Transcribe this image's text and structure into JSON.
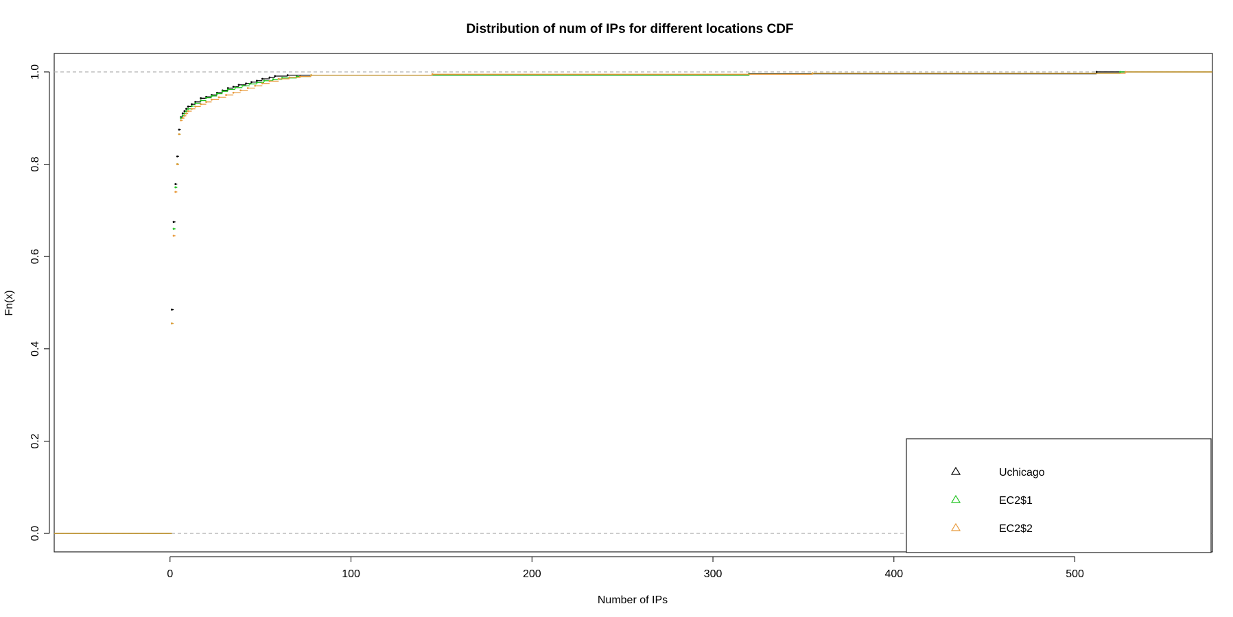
{
  "chart_data": {
    "type": "line",
    "title": "Distribution of num of IPs for different locations CDF",
    "xlabel": "Number of IPs",
    "ylabel": "Fn(x)",
    "xlim": [
      -64,
      576
    ],
    "ylim": [
      -0.04,
      1.04
    ],
    "x_ticks": [
      "0",
      "100",
      "200",
      "300",
      "400",
      "500"
    ],
    "y_ticks": [
      "0.0",
      "0.2",
      "0.4",
      "0.6",
      "0.8",
      "1.0"
    ],
    "reference_lines_y": [
      0,
      1
    ],
    "legend_position": "bottom-right",
    "series": [
      {
        "name": "Uchicago",
        "color": "#000000",
        "points": [
          [
            1,
            0.485
          ],
          [
            2,
            0.675
          ],
          [
            3,
            0.757
          ],
          [
            4,
            0.817
          ],
          [
            5,
            0.875
          ],
          [
            6,
            0.902
          ],
          [
            7,
            0.91
          ],
          [
            8,
            0.915
          ],
          [
            9,
            0.92
          ],
          [
            10,
            0.925
          ],
          [
            12,
            0.93
          ],
          [
            14,
            0.935
          ],
          [
            17,
            0.943
          ],
          [
            20,
            0.946
          ],
          [
            23,
            0.95
          ],
          [
            26,
            0.955
          ],
          [
            29,
            0.96
          ],
          [
            32,
            0.965
          ],
          [
            35,
            0.968
          ],
          [
            38,
            0.972
          ],
          [
            42,
            0.975
          ],
          [
            45,
            0.978
          ],
          [
            48,
            0.981
          ],
          [
            51,
            0.985
          ],
          [
            55,
            0.988
          ],
          [
            58,
            0.991
          ],
          [
            65,
            0.993
          ],
          [
            320,
            0.996
          ],
          [
            512,
            1.0
          ]
        ]
      },
      {
        "name": "EC2$1",
        "color": "#22c422",
        "points": [
          [
            1,
            0.455
          ],
          [
            2,
            0.66
          ],
          [
            3,
            0.75
          ],
          [
            4,
            0.8
          ],
          [
            5,
            0.865
          ],
          [
            6,
            0.9
          ],
          [
            7,
            0.905
          ],
          [
            8,
            0.91
          ],
          [
            9,
            0.915
          ],
          [
            10,
            0.92
          ],
          [
            12,
            0.926
          ],
          [
            14,
            0.932
          ],
          [
            17,
            0.938
          ],
          [
            20,
            0.944
          ],
          [
            23,
            0.948
          ],
          [
            26,
            0.953
          ],
          [
            29,
            0.958
          ],
          [
            32,
            0.962
          ],
          [
            36,
            0.966
          ],
          [
            40,
            0.97
          ],
          [
            44,
            0.974
          ],
          [
            48,
            0.977
          ],
          [
            52,
            0.981
          ],
          [
            57,
            0.984
          ],
          [
            62,
            0.987
          ],
          [
            70,
            0.99
          ],
          [
            78,
            0.993
          ],
          [
            320,
            0.995
          ],
          [
            355,
            0.997
          ],
          [
            525,
            1.0
          ]
        ]
      },
      {
        "name": "EC2$2",
        "color": "#e89a3c",
        "points": [
          [
            1,
            0.455
          ],
          [
            2,
            0.645
          ],
          [
            3,
            0.74
          ],
          [
            4,
            0.8
          ],
          [
            5,
            0.865
          ],
          [
            6,
            0.895
          ],
          [
            7,
            0.9
          ],
          [
            8,
            0.905
          ],
          [
            9,
            0.91
          ],
          [
            10,
            0.915
          ],
          [
            12,
            0.92
          ],
          [
            14,
            0.925
          ],
          [
            17,
            0.93
          ],
          [
            20,
            0.935
          ],
          [
            23,
            0.94
          ],
          [
            27,
            0.945
          ],
          [
            31,
            0.95
          ],
          [
            35,
            0.955
          ],
          [
            39,
            0.96
          ],
          [
            43,
            0.965
          ],
          [
            47,
            0.97
          ],
          [
            51,
            0.975
          ],
          [
            55,
            0.98
          ],
          [
            60,
            0.985
          ],
          [
            66,
            0.988
          ],
          [
            72,
            0.99
          ],
          [
            78,
            0.993
          ],
          [
            145,
            0.995
          ],
          [
            355,
            0.997
          ],
          [
            528,
            1.0
          ]
        ]
      }
    ]
  }
}
